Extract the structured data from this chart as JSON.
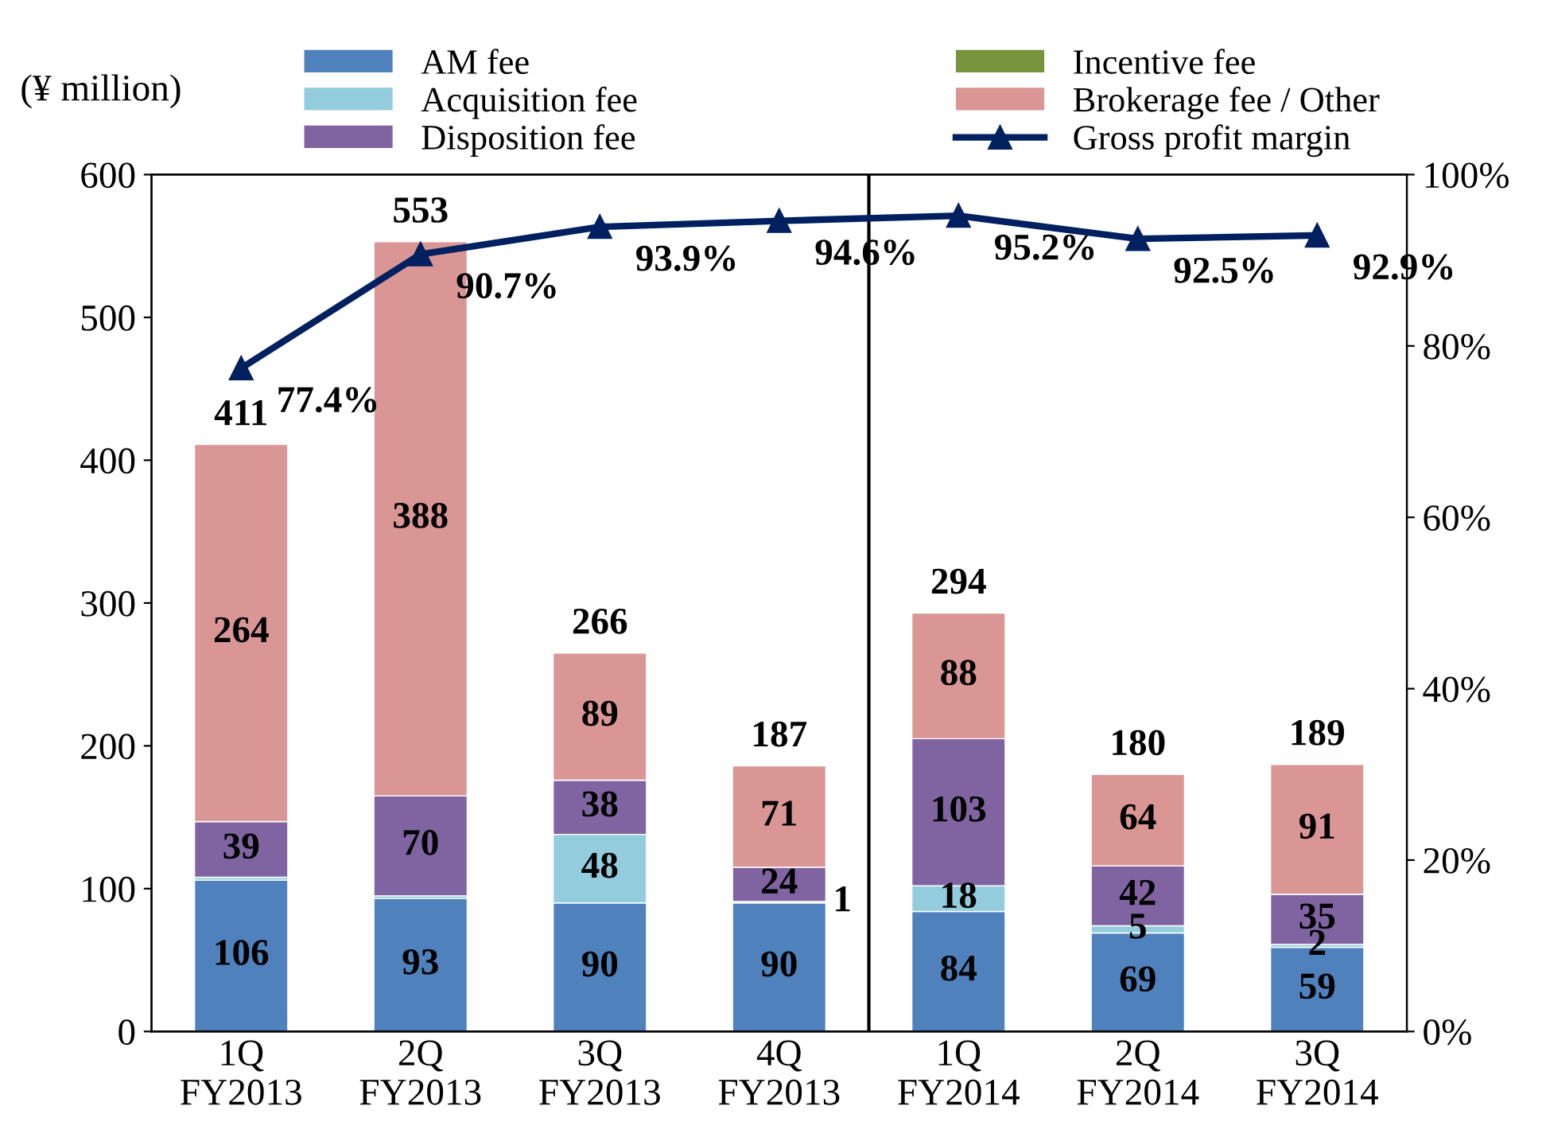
{
  "chart_data": {
    "type": "bar",
    "stacked": true,
    "categories": [
      "1Q\nFY2013",
      "2Q\nFY2013",
      "3Q\nFY2013",
      "4Q\nFY2013",
      "1Q\nFY2014",
      "2Q\nFY2014",
      "3Q\nFY2014"
    ],
    "ylabel": "(¥ million)",
    "ylim": [
      0,
      600
    ],
    "yticks": [
      0,
      100,
      200,
      300,
      400,
      500,
      600
    ],
    "y2lim": [
      0,
      100
    ],
    "y2ticks": [
      {
        "value": 0,
        "label": "0%"
      },
      {
        "value": 20,
        "label": "20%"
      },
      {
        "value": 40,
        "label": "40%"
      },
      {
        "value": 60,
        "label": "60%"
      },
      {
        "value": 80,
        "label": "80%"
      },
      {
        "value": 100,
        "label": "100%"
      }
    ],
    "series": [
      {
        "name": "AM fee",
        "color": "#4f81bd",
        "values": [
          106,
          93,
          90,
          90,
          84,
          69,
          59
        ],
        "value_labels": [
          "106",
          "93",
          "90",
          "90",
          "84",
          "69",
          "59"
        ]
      },
      {
        "name": "Acquisition fee",
        "color": "#93cddd",
        "values": [
          2,
          2,
          48,
          1,
          18,
          5,
          2
        ],
        "value_labels": [
          null,
          null,
          "48",
          "1",
          "18",
          "5",
          "2"
        ]
      },
      {
        "name": "Disposition fee",
        "color": "#8064a2",
        "values": [
          39,
          70,
          38,
          24,
          103,
          42,
          35
        ],
        "value_labels": [
          "39",
          "70",
          "38",
          "24",
          "103",
          "42",
          "35"
        ]
      },
      {
        "name": "Incentive fee",
        "color": "#77933c",
        "values": [
          0,
          0,
          0,
          0,
          0,
          0,
          0
        ]
      },
      {
        "name": "Brokerage fee / Other",
        "color": "#d99694",
        "values": [
          264,
          388,
          89,
          71,
          88,
          64,
          91
        ],
        "value_labels": [
          "264",
          "388",
          "89",
          "71",
          "88",
          "64",
          "91"
        ]
      },
      {
        "name": "Gross profit margin",
        "type": "line",
        "axis": "y2",
        "color": "#002060",
        "marker": "triangle",
        "values": [
          77.4,
          90.7,
          93.9,
          94.6,
          95.2,
          92.5,
          92.9
        ],
        "value_labels": [
          "77.4%",
          "90.7%",
          "93.9%",
          "94.6%",
          "95.2%",
          "92.5%",
          "92.9%"
        ]
      }
    ],
    "totals": [
      "411",
      "553",
      "266",
      "187",
      "294",
      "180",
      "189"
    ],
    "legend": "top",
    "grid": false
  }
}
